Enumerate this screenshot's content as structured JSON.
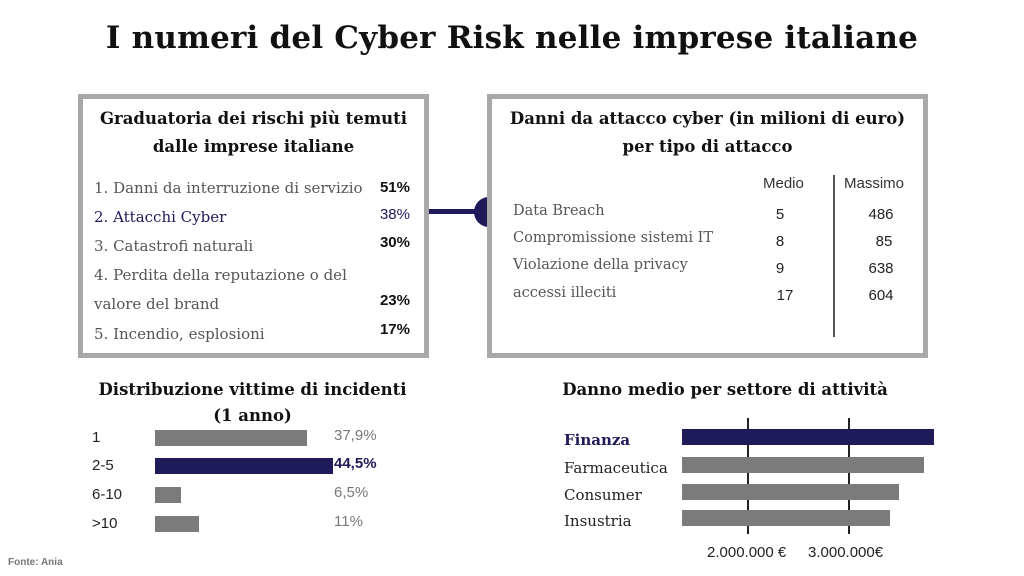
{
  "title": "I numeri del Cyber Risk nelle imprese italiane",
  "source": "Fonte: Ania",
  "ranking": {
    "title_line1": "Graduatoria dei rischi più temuti",
    "title_line2": "dalle imprese italiane",
    "items": [
      {
        "label": "1. Danni da interruzione di servizio",
        "pct": "51%"
      },
      {
        "label": "2. Attacchi Cyber",
        "pct": "38%"
      },
      {
        "label": "3. Catastrofi naturali",
        "pct": "30%"
      },
      {
        "label": "4. Perdita della reputazione o del",
        "label2": "valore del brand",
        "pct": "23%"
      },
      {
        "label": "5. Incendio, esplosioni",
        "pct": "17%"
      }
    ],
    "highlight_color": "#1f1a5a"
  },
  "damages": {
    "title_line1": "Danni da attacco cyber (in milioni di euro)",
    "title_line2": "per tipo di attacco",
    "col_medio": "Medio",
    "col_massimo": "Massimo",
    "rows": [
      {
        "label": "Data Breach",
        "medio": "5",
        "massimo": "486"
      },
      {
        "label": "Compromissione sistemi IT",
        "medio": "8",
        "massimo": "85"
      },
      {
        "label": "Violazione della privacy",
        "medio": "9",
        "massimo": "638"
      },
      {
        "label": "accessi illeciti",
        "medio": "17",
        "massimo": "604"
      }
    ]
  },
  "chart_data": [
    {
      "type": "bar",
      "orientation": "horizontal",
      "title_line1": "Distribuzione vittime di incidenti",
      "title_line2": "(1 anno)",
      "categories": [
        "1",
        "2-5",
        "6-10",
        ">10"
      ],
      "values": [
        37.9,
        44.5,
        6.5,
        11
      ],
      "value_labels": [
        "37,9%",
        "44,5%",
        "6,5%",
        "11%"
      ],
      "highlight_index": 1,
      "xlim": [
        0,
        50
      ],
      "grid": false,
      "colors": {
        "bar": "#7b7b7b",
        "highlight": "#1f1a5a"
      }
    },
    {
      "type": "bar",
      "orientation": "horizontal",
      "title": "Danno medio per settore di attività",
      "categories": [
        "Finanza",
        "Farmaceutica",
        "Consumer",
        "Insustria"
      ],
      "values": [
        3850000,
        3750000,
        3500000,
        3420000
      ],
      "highlight_index": 0,
      "xlim": [
        1350000,
        3990000
      ],
      "ticks": [
        2000000,
        3000000
      ],
      "tick_labels": [
        "2.000.000 €",
        "3.000.000€"
      ],
      "grid": true,
      "colors": {
        "bar": "#7b7b7b",
        "highlight": "#1f1a5a"
      }
    }
  ]
}
